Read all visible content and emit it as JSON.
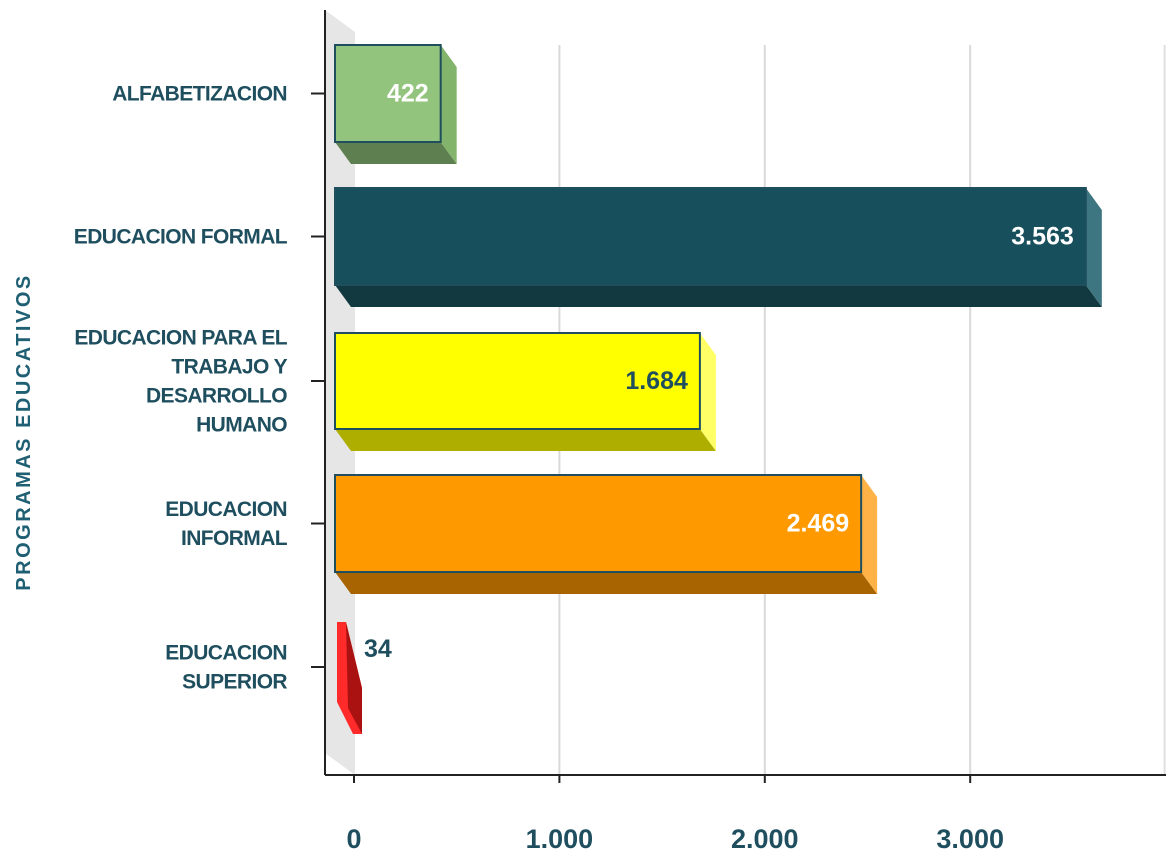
{
  "chart_data": {
    "type": "bar",
    "orientation": "horizontal",
    "style": "3d",
    "ylabel": "PROGRAMAS EDUCATIVOS",
    "xlabel": "",
    "xlim": [
      0,
      4000
    ],
    "grid": true,
    "legend": "none",
    "x_ticks": [
      {
        "value": 0,
        "label": "0"
      },
      {
        "value": 1000,
        "label": "1.000"
      },
      {
        "value": 2000,
        "label": "2.000"
      },
      {
        "value": 3000,
        "label": "3.000"
      }
    ],
    "categories": [
      {
        "lines": [
          "ALFABETIZACION"
        ]
      },
      {
        "lines": [
          "EDUCACION FORMAL"
        ]
      },
      {
        "lines": [
          "EDUCACION PARA EL",
          "TRABAJO Y",
          "DESARROLLO",
          "HUMANO"
        ]
      },
      {
        "lines": [
          "EDUCACION",
          "INFORMAL"
        ]
      },
      {
        "lines": [
          "EDUCACION",
          "SUPERIOR"
        ]
      }
    ],
    "values": [
      422,
      3563,
      1684,
      2469,
      34
    ],
    "value_labels": [
      "422",
      "3.563",
      "1.684",
      "2.469",
      "34"
    ],
    "colors": {
      "front": [
        "#93c47d",
        "#174f5c",
        "#ffff00",
        "#ff9900",
        "#ff2a2a"
      ],
      "side": [
        "#82b56b",
        "#3d7680",
        "#ffff66",
        "#ffb347",
        "#d41a1a"
      ],
      "bottom": [
        "#5e7f50",
        "#133940",
        "#aeae00",
        "#a86400",
        "#aa1111"
      ],
      "label": [
        "#ffffff",
        "#ffffff",
        "#1f4f5f",
        "#ffffff",
        "#1f4f5f"
      ]
    }
  }
}
